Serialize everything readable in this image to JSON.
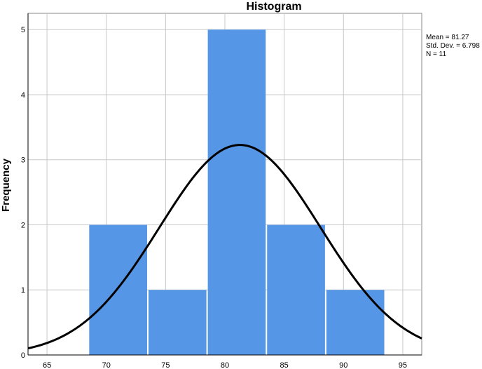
{
  "chart_data": {
    "type": "bar",
    "title": "Histogram",
    "ylabel": "Frequency",
    "xlabel": "",
    "xlim": [
      63.4,
      96.6
    ],
    "ylim": [
      0,
      5.25
    ],
    "xticks": [
      65,
      70,
      75,
      80,
      85,
      90,
      95
    ],
    "yticks": [
      0,
      1,
      2,
      3,
      4,
      5
    ],
    "bin_width": 5,
    "bins": [
      {
        "start": 68.5,
        "end": 73.5,
        "count": 2
      },
      {
        "start": 73.5,
        "end": 78.5,
        "count": 1
      },
      {
        "start": 78.5,
        "end": 83.5,
        "count": 5
      },
      {
        "start": 83.5,
        "end": 88.5,
        "count": 2
      },
      {
        "start": 88.5,
        "end": 93.5,
        "count": 1
      }
    ],
    "normal_curve": {
      "mean": 81.27,
      "std_dev": 6.798,
      "n": 11
    },
    "stats_text": [
      "Mean = 81.27",
      "Std. Dev. = 6.798",
      "N = 11"
    ],
    "bar_color": "#5596e6",
    "curve_color": "#000000",
    "grid": true,
    "gridline_color": "#c8c8c8"
  }
}
